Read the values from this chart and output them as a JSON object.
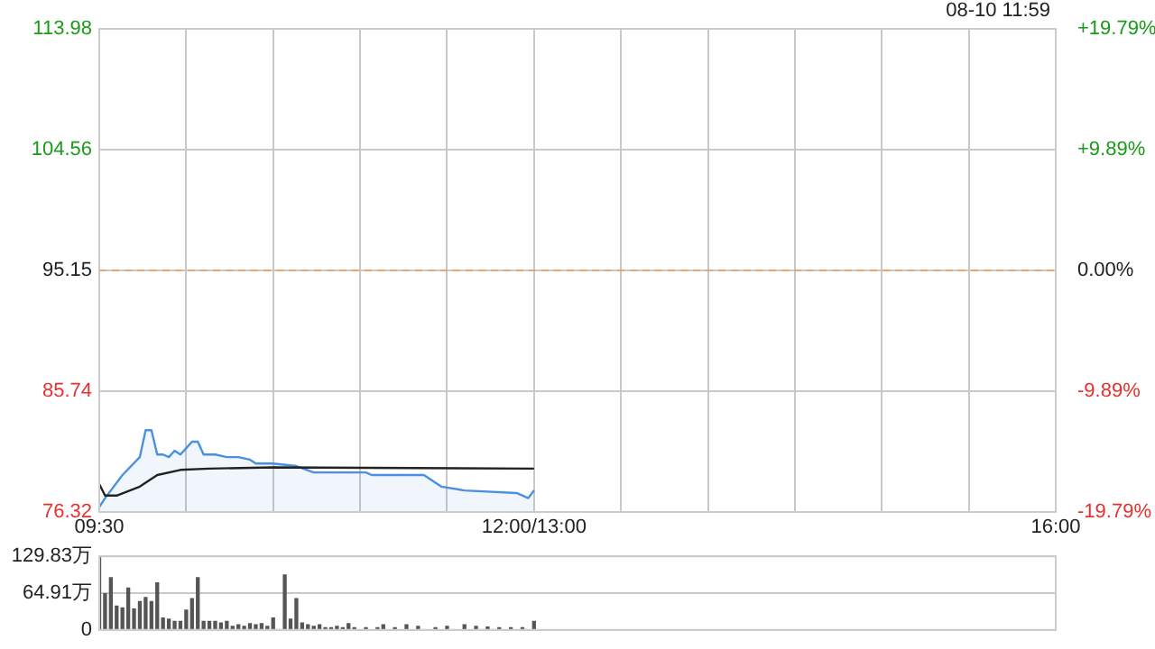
{
  "chart_data": [
    {
      "type": "line",
      "annotations": [
        "08-10 11:59"
      ],
      "categories": [
        "09:30",
        null,
        null,
        null,
        null,
        null,
        null,
        null,
        null,
        null,
        null,
        null,
        null,
        null,
        null,
        null,
        null,
        null,
        null,
        null,
        null,
        null,
        null,
        null,
        null,
        null,
        null,
        null,
        null,
        null,
        null,
        null,
        null,
        null,
        null,
        null,
        null,
        null,
        null,
        null,
        null,
        null,
        null,
        null,
        null,
        null,
        null,
        null,
        null,
        null,
        null,
        null,
        null,
        null,
        null,
        null,
        null,
        null,
        null,
        null,
        null,
        null,
        null,
        null,
        null,
        null,
        null,
        null,
        null,
        null,
        null,
        null,
        null,
        null,
        null,
        "12:00/13:00",
        null,
        null,
        null,
        null,
        null,
        null,
        null,
        null,
        null,
        null,
        null,
        null,
        null,
        null,
        null,
        null,
        null,
        null,
        null,
        null,
        null,
        null,
        null,
        null,
        null,
        null,
        null,
        null,
        null,
        null,
        null,
        null,
        null,
        null,
        null,
        null,
        null,
        null,
        null,
        null,
        null,
        null,
        null,
        null,
        null,
        null,
        null,
        null,
        null,
        null,
        null,
        null,
        null,
        null,
        null,
        null,
        null,
        null,
        null,
        null,
        null,
        null,
        null,
        null,
        null,
        null,
        null,
        null,
        null,
        null,
        null,
        null,
        null,
        null,
        null,
        null,
        null,
        null,
        null,
        null,
        null,
        null,
        null,
        null,
        null,
        null,
        null,
        null,
        null,
        "16:00"
      ],
      "ylim": [
        76.32,
        113.98
      ],
      "yticks": [
        76.32,
        85.74,
        95.15,
        104.56,
        113.98
      ],
      "y2lim": [
        -19.79,
        19.79
      ],
      "y2ticks": [
        {
          "value": -19.79,
          "label": "-19.79%"
        },
        {
          "value": -9.89,
          "label": "-9.89%"
        },
        {
          "value": 0,
          "label": "0.00%"
        },
        {
          "value": 9.89,
          "label": "+9.89%"
        },
        {
          "value": 19.79,
          "label": "+19.79%"
        }
      ],
      "grid": true,
      "legend": false,
      "ref_lines": [
        {
          "axis": "y",
          "value": 95.15,
          "color": "#f4a460",
          "line_style": "dashed"
        }
      ],
      "series": [
        {
          "type": "area",
          "color": "#4a90e2",
          "values": [
            76.7,
            77.4,
            null,
            null,
            79.2,
            null,
            null,
            80.6,
            82.7,
            82.7,
            80.8,
            80.8,
            80.6,
            81.1,
            80.8,
            81.3,
            81.8,
            81.8,
            80.8,
            null,
            80.8,
            null,
            80.6,
            null,
            80.6,
            null,
            80.4,
            80.1,
            null,
            null,
            80.1,
            null,
            null,
            null,
            79.9,
            null,
            null,
            79.4,
            null,
            null,
            null,
            null,
            null,
            null,
            null,
            null,
            79.4,
            79.2,
            null,
            null,
            null,
            null,
            null,
            null,
            null,
            null,
            79.2,
            null,
            null,
            78.3,
            null,
            null,
            null,
            78.0,
            null,
            null,
            null,
            null,
            null,
            null,
            null,
            null,
            77.8,
            null,
            77.4,
            78.0,
            null,
            null,
            null,
            null,
            null,
            null,
            null,
            null,
            null,
            null,
            null,
            null,
            null,
            null,
            null,
            null,
            null,
            null,
            null,
            null,
            null,
            null,
            null,
            null,
            null,
            null,
            null,
            null,
            null,
            null,
            null,
            null,
            null,
            null,
            null,
            null,
            null,
            null,
            null,
            null,
            null,
            null,
            null,
            null,
            null,
            null,
            null,
            null,
            null,
            null,
            null,
            null,
            null,
            null,
            null,
            null,
            null,
            null,
            null,
            null,
            null,
            null,
            null,
            null,
            null,
            null,
            null,
            null,
            null,
            null,
            null,
            null,
            null,
            null,
            null,
            null,
            null,
            null,
            null,
            null,
            null,
            null,
            null,
            null,
            null,
            null,
            null,
            null,
            null,
            null
          ]
        },
        {
          "type": "line",
          "color": "#222222",
          "values": [
            78.5,
            77.6,
            null,
            77.6,
            null,
            null,
            null,
            78.3,
            null,
            null,
            79.2,
            null,
            null,
            null,
            79.6,
            null,
            null,
            null,
            null,
            79.7,
            null,
            null,
            null,
            null,
            null,
            null,
            null,
            null,
            null,
            null,
            79.8,
            null,
            null,
            null,
            null,
            null,
            null,
            null,
            null,
            null,
            null,
            null,
            null,
            null,
            null,
            null,
            null,
            null,
            null,
            null,
            null,
            null,
            null,
            null,
            null,
            null,
            null,
            null,
            null,
            null,
            null,
            null,
            null,
            null,
            null,
            null,
            null,
            null,
            null,
            null,
            null,
            null,
            null,
            null,
            null,
            79.7,
            null,
            null,
            null,
            null,
            null,
            null,
            null,
            null,
            null,
            null,
            null,
            null,
            null,
            null,
            null,
            null,
            null,
            null,
            null,
            null,
            null,
            null,
            null,
            null,
            null,
            null,
            null,
            null,
            null,
            null,
            null,
            null,
            null,
            null,
            null,
            null,
            null,
            null,
            null,
            null,
            null,
            null,
            null,
            null,
            null,
            null,
            null,
            null,
            null,
            null,
            null,
            null,
            null,
            null,
            null,
            null,
            null,
            null,
            null,
            null,
            null,
            null,
            null,
            null,
            null,
            null,
            null,
            null,
            null,
            null,
            null,
            null,
            null,
            null,
            null,
            null,
            null,
            null,
            null,
            null,
            null,
            null,
            null,
            null,
            null,
            null,
            null,
            null,
            null,
            null
          ]
        }
      ]
    },
    {
      "type": "bar",
      "tick_labels": "y",
      "ylim": [
        0,
        129.83
      ],
      "yticks": [
        0,
        {
          "value": 64.91,
          "label": "64.91万"
        },
        {
          "value": 129.83,
          "label": "129.83万"
        }
      ],
      "grid": "y",
      "legend": false,
      "color": "#555555",
      "categories": [
        null,
        null,
        null,
        null,
        null,
        null,
        null,
        null,
        null,
        null,
        null,
        null,
        null,
        null,
        null,
        null,
        null,
        null,
        null,
        null,
        null,
        null,
        null,
        null,
        null,
        null,
        null,
        null,
        null,
        null,
        null,
        null,
        null,
        null,
        null,
        null,
        null,
        null,
        null,
        null,
        null,
        null,
        null,
        null,
        null,
        null,
        null,
        null,
        null,
        null,
        null,
        null,
        null,
        null,
        null,
        null,
        null,
        null,
        null,
        null,
        null,
        null,
        null,
        null,
        null,
        null,
        null,
        null,
        null,
        null,
        null,
        null,
        null,
        null,
        null,
        null,
        null,
        null,
        null,
        null,
        null,
        null,
        null,
        null,
        null,
        null,
        null,
        null,
        null,
        null,
        null,
        null,
        null,
        null,
        null,
        null,
        null,
        null,
        null,
        null,
        null,
        null,
        null,
        null,
        null,
        null,
        null,
        null,
        null,
        null,
        null,
        null,
        null,
        null,
        null,
        null,
        null,
        null,
        null,
        null,
        null,
        null,
        null,
        null,
        null,
        null,
        null,
        null,
        null,
        null,
        null,
        null,
        null,
        null,
        null,
        null,
        null,
        null,
        null,
        null,
        null,
        null,
        null,
        null,
        null,
        null,
        null,
        null,
        null,
        null,
        null,
        null,
        null,
        null,
        null,
        null,
        null,
        null,
        null,
        null,
        null,
        null,
        null,
        null,
        null,
        null
      ],
      "values": [
        129,
        64,
        92,
        42,
        39,
        74,
        37,
        50,
        57,
        50,
        83,
        21,
        19,
        15,
        15,
        35,
        55,
        92,
        15,
        15,
        15,
        12,
        15,
        6,
        9,
        6,
        11,
        9,
        11,
        6,
        21,
        null,
        97,
        19,
        55,
        12,
        9,
        6,
        9,
        4,
        4,
        6,
        4,
        11,
        4,
        null,
        4,
        null,
        4,
        9,
        null,
        4,
        null,
        9,
        null,
        6,
        null,
        null,
        4,
        null,
        6,
        null,
        null,
        9,
        null,
        6,
        null,
        5,
        null,
        4,
        null,
        4,
        null,
        4,
        null,
        15,
        null,
        null,
        null,
        null,
        null,
        null,
        null,
        null,
        null,
        null,
        null,
        null,
        null,
        null,
        null,
        null,
        null,
        null,
        null,
        null,
        null,
        null,
        null,
        null,
        null,
        null,
        null,
        null,
        null,
        null,
        null,
        null,
        null,
        null,
        null,
        null,
        null,
        null,
        null,
        null,
        null,
        null,
        null,
        null,
        null,
        null,
        null,
        null,
        null,
        null,
        null,
        null,
        null,
        null,
        null,
        null,
        null,
        null,
        null,
        null,
        null,
        null,
        null,
        null,
        null,
        null,
        null,
        null,
        null,
        null,
        null,
        null,
        null,
        null,
        null,
        null,
        null,
        null,
        null,
        null,
        null,
        null,
        null,
        null,
        null,
        null,
        null,
        null,
        null,
        null
      ]
    }
  ]
}
